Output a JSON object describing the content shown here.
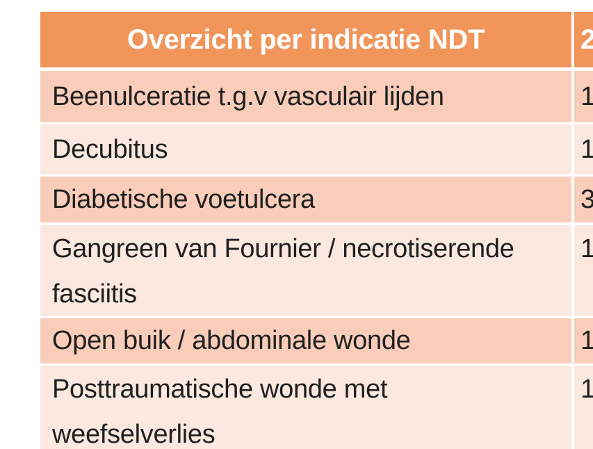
{
  "table": {
    "title": "Overzicht per indicatie NDT",
    "header": {
      "col1": "Overzicht per indicatie NDT",
      "col2_partial": "2"
    },
    "rows": [
      {
        "label": "Beenulceratie t.g.v vasculair lijden",
        "value_partial": "1"
      },
      {
        "label": "Decubitus",
        "value_partial": "1"
      },
      {
        "label": "Diabetische voetulcera",
        "value_partial": "3"
      },
      {
        "label": "Gangreen van Fournier / necrotiserende\nfasciitis",
        "value_partial": "1"
      },
      {
        "label": "Open buik / abdominale wonde",
        "value_partial": "1"
      },
      {
        "label": "Posttraumatische wonde met\nweefselverlies",
        "value_partial": "1"
      }
    ],
    "colors": {
      "header_bg": "#F2955A",
      "row_dark_bg": "#F9CDB9",
      "row_light_bg": "#FBE9E0",
      "header_text": "#FFFFFF",
      "row_text": "#1F1F1F"
    }
  }
}
